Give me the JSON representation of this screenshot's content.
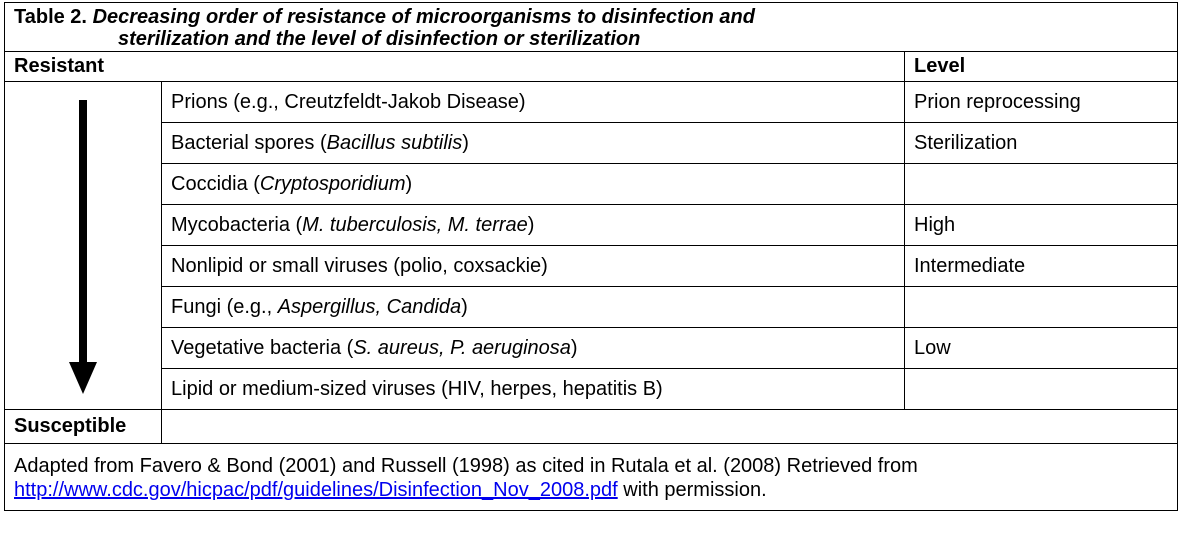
{
  "table": {
    "label": "Table 2.",
    "title_lines": [
      "Decreasing order of resistance of microorganisms to disinfection and",
      "sterilization and the level of disinfection or sterilization"
    ],
    "header": {
      "left": "Resistant",
      "right": "Level"
    },
    "rows": [
      {
        "organism": [
          {
            "text": "Prions (e.g., Creutzfeldt-Jakob Disease)",
            "italic": false
          }
        ],
        "level": "Prion reprocessing"
      },
      {
        "organism": [
          {
            "text": "Bacterial spores (",
            "italic": false
          },
          {
            "text": "Bacillus subtilis",
            "italic": true
          },
          {
            "text": ")",
            "italic": false
          }
        ],
        "level": "Sterilization"
      },
      {
        "organism": [
          {
            "text": "Coccidia (",
            "italic": false
          },
          {
            "text": "Cryptosporidium",
            "italic": true
          },
          {
            "text": ")",
            "italic": false
          }
        ],
        "level": null
      },
      {
        "organism": [
          {
            "text": "Mycobacteria (",
            "italic": false
          },
          {
            "text": "M. tuberculosis, M. terrae",
            "italic": true
          },
          {
            "text": ")",
            "italic": false
          }
        ],
        "level": "High"
      },
      {
        "organism": [
          {
            "text": "Nonlipid or small viruses (polio, coxsackie)",
            "italic": false
          }
        ],
        "level": "Intermediate"
      },
      {
        "organism": [
          {
            "text": "Fungi (e.g., ",
            "italic": false
          },
          {
            "text": "Aspergillus, Candida",
            "italic": true
          },
          {
            "text": ")",
            "italic": false
          }
        ],
        "level": null
      },
      {
        "organism": [
          {
            "text": "Vegetative bacteria (",
            "italic": false
          },
          {
            "text": "S. aureus, P. aeruginosa",
            "italic": true
          },
          {
            "text": ")",
            "italic": false
          }
        ],
        "level": "Low"
      },
      {
        "organism": [
          {
            "text": "Lipid or medium-sized viruses (HIV, herpes, hepatitis B)",
            "italic": false
          }
        ],
        "level": null
      }
    ],
    "footer_left": "Susceptible",
    "note": {
      "before": "Adapted from Favero & Bond (2001) and Russell (1998) as cited in Rutala et al. (2008) Retrieved from",
      "link": "http://www.cdc.gov/hicpac/pdf/guidelines/Disinfection_Nov_2008.pdf",
      "after": "with permission."
    }
  }
}
